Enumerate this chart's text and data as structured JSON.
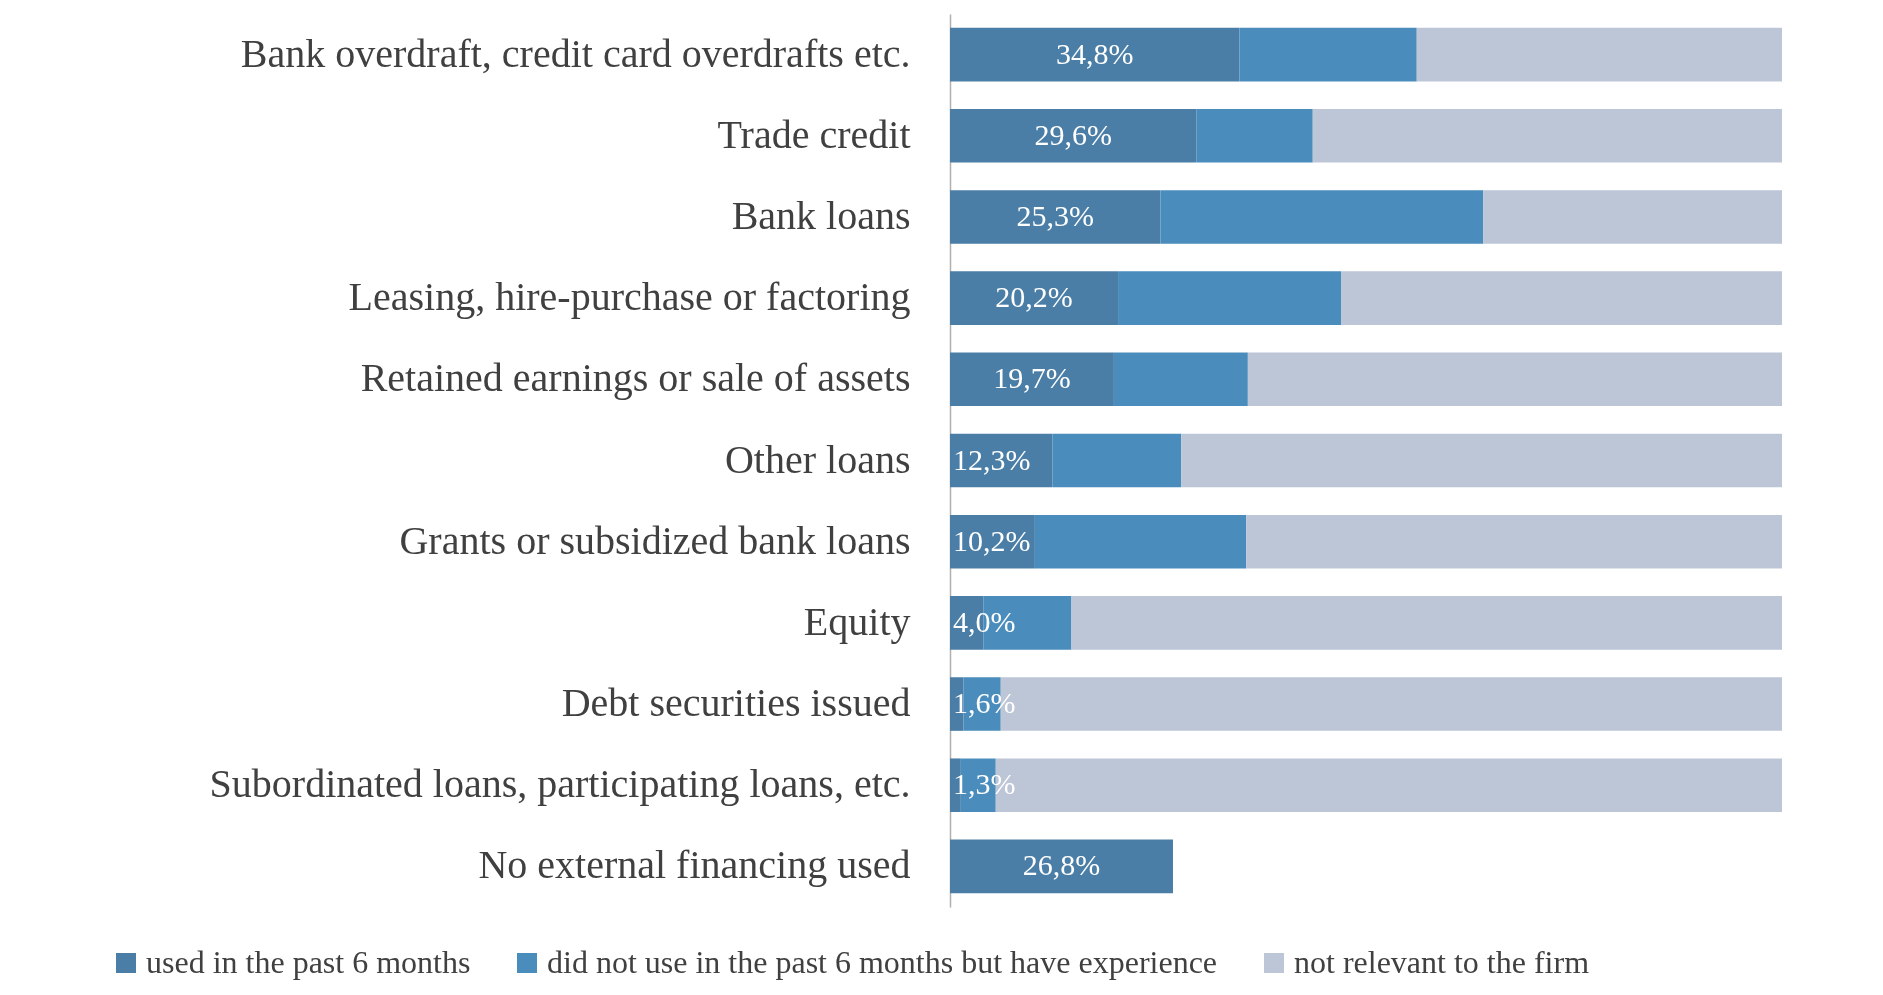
{
  "chart_data": {
    "type": "bar",
    "orientation": "horizontal",
    "stacked": true,
    "legend": "bottom",
    "tick_labels": "y",
    "xlim": [
      0,
      100
    ],
    "categories": [
      "Bank overdraft, credit card overdrafts etc.",
      "Trade credit",
      "Bank loans",
      "Leasing, hire-purchase or factoring",
      "Retained earnings or sale of assets",
      "Other loans",
      "Grants or subsidized bank loans",
      "Equity",
      "Debt securities issued",
      "Subordinated loans, participating loans, etc.",
      "No external financing used"
    ],
    "series": [
      {
        "name": "used in the past 6 months",
        "color": "#4a7ea6",
        "values": [
          34.8,
          29.6,
          25.3,
          20.2,
          19.7,
          12.3,
          10.2,
          4.0,
          1.6,
          1.3,
          26.8
        ],
        "value_labels": [
          "34,8%",
          "29,6%",
          "25,3%",
          "20,2%",
          "19,7%",
          "12,3%",
          "10,2%",
          "4,0%",
          "1,6%",
          "1,3%",
          "26,8%"
        ]
      },
      {
        "name": "did not use in the past 6 months but have experience",
        "color": "#4a8dbd",
        "values": [
          21.3,
          14.0,
          38.8,
          26.8,
          16.1,
          15.5,
          25.4,
          10.6,
          4.5,
          4.2,
          null
        ]
      },
      {
        "name": "not relevant to the firm",
        "color": "#bdc6d7",
        "values": [
          43.9,
          56.4,
          35.9,
          53.0,
          64.2,
          72.2,
          64.4,
          85.4,
          93.9,
          94.5,
          null
        ]
      }
    ]
  }
}
